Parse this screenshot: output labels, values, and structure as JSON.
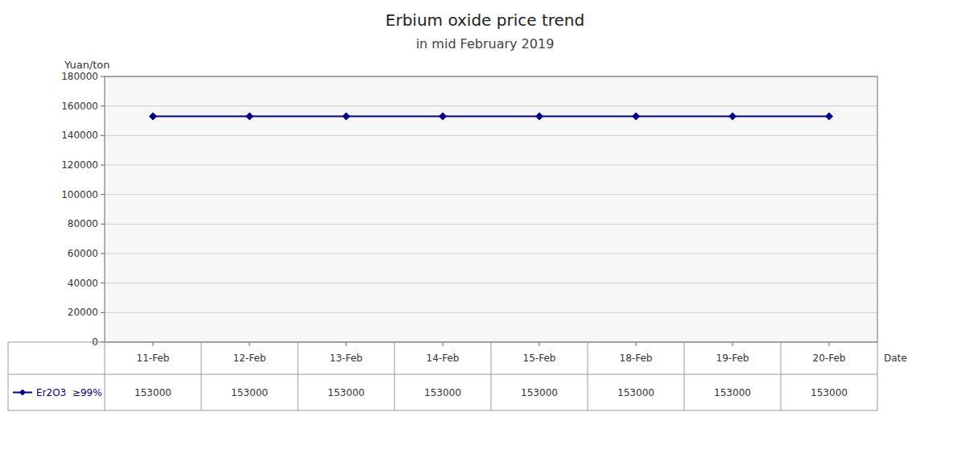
{
  "chart_data": {
    "type": "line",
    "title": "Erbium oxide price trend",
    "subtitle": "in mid February 2019",
    "x_label": "Date",
    "y_label": "Yuan/ton",
    "categories": [
      "11-Feb",
      "12-Feb",
      "13-Feb",
      "14-Feb",
      "15-Feb",
      "18-Feb",
      "19-Feb",
      "20-Feb"
    ],
    "series": [
      {
        "name": "Er2O3  ≥99%",
        "color": "#00008B",
        "marker": "diamond",
        "values": [
          153000,
          153000,
          153000,
          153000,
          153000,
          153000,
          153000,
          153000
        ]
      }
    ],
    "ylim": [
      0,
      180000
    ],
    "yticks": [
      0,
      20000,
      40000,
      60000,
      80000,
      100000,
      120000,
      140000,
      160000,
      180000
    ],
    "grid": true,
    "data_labels": true
  }
}
